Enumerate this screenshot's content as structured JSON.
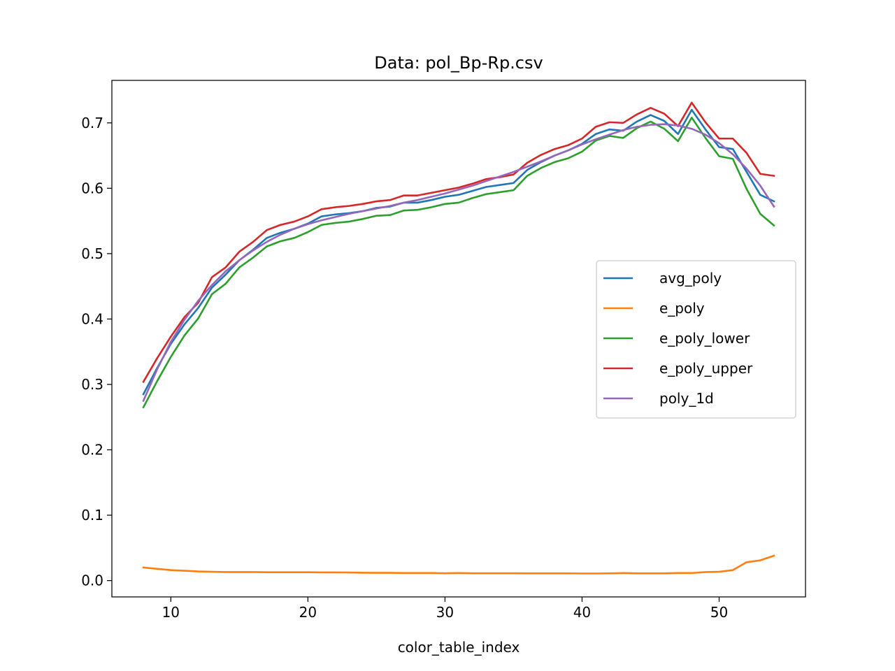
{
  "chart_data": {
    "type": "line",
    "title": "Data: pol_Bp-Rp.csv",
    "xlabel": "color_table_index",
    "ylabel": "",
    "xlim": [
      5.7,
      56.3
    ],
    "ylim": [
      -0.025,
      0.765
    ],
    "xticks": [
      10,
      20,
      30,
      40,
      50
    ],
    "yticks": [
      0.0,
      0.1,
      0.2,
      0.3,
      0.4,
      0.5,
      0.6,
      0.7
    ],
    "ytick_labels": [
      "0.0",
      "0.1",
      "0.2",
      "0.3",
      "0.4",
      "0.5",
      "0.6",
      "0.7"
    ],
    "grid": false,
    "legend_position": "center-right",
    "x": [
      8,
      9,
      10,
      11,
      12,
      13,
      14,
      15,
      16,
      17,
      18,
      19,
      20,
      21,
      22,
      23,
      24,
      25,
      26,
      27,
      28,
      29,
      30,
      31,
      32,
      33,
      34,
      35,
      36,
      37,
      38,
      39,
      40,
      41,
      42,
      43,
      44,
      45,
      46,
      47,
      48,
      49,
      50,
      51,
      52,
      53,
      54
    ],
    "series": [
      {
        "name": "avg_poly",
        "color": "#1f77b4",
        "values": [
          0.285,
          0.325,
          0.362,
          0.392,
          0.417,
          0.448,
          0.468,
          0.49,
          0.506,
          0.524,
          0.532,
          0.538,
          0.546,
          0.557,
          0.56,
          0.562,
          0.565,
          0.57,
          0.572,
          0.578,
          0.578,
          0.582,
          0.587,
          0.59,
          0.596,
          0.602,
          0.605,
          0.608,
          0.628,
          0.64,
          0.65,
          0.658,
          0.668,
          0.683,
          0.69,
          0.688,
          0.702,
          0.712,
          0.703,
          0.683,
          0.72,
          0.69,
          0.663,
          0.66,
          0.625,
          0.59,
          0.58
        ]
      },
      {
        "name": "e_poly",
        "color": "#ff7f0e",
        "values": [
          0.02,
          0.018,
          0.016,
          0.015,
          0.014,
          0.0135,
          0.013,
          0.013,
          0.013,
          0.0128,
          0.0128,
          0.0128,
          0.0128,
          0.0125,
          0.0125,
          0.0123,
          0.012,
          0.0118,
          0.0118,
          0.0115,
          0.0115,
          0.0115,
          0.0112,
          0.0115,
          0.0112,
          0.0112,
          0.0112,
          0.0112,
          0.011,
          0.011,
          0.011,
          0.011,
          0.0108,
          0.0108,
          0.011,
          0.0115,
          0.011,
          0.011,
          0.011,
          0.0115,
          0.0115,
          0.013,
          0.0135,
          0.016,
          0.028,
          0.031,
          0.038
        ]
      },
      {
        "name": "e_poly_lower",
        "color": "#2ca02c",
        "values": [
          0.265,
          0.305,
          0.342,
          0.375,
          0.401,
          0.438,
          0.454,
          0.479,
          0.494,
          0.511,
          0.519,
          0.524,
          0.533,
          0.544,
          0.547,
          0.549,
          0.553,
          0.558,
          0.559,
          0.566,
          0.567,
          0.571,
          0.576,
          0.578,
          0.585,
          0.591,
          0.594,
          0.597,
          0.619,
          0.631,
          0.64,
          0.646,
          0.656,
          0.673,
          0.68,
          0.677,
          0.692,
          0.702,
          0.691,
          0.672,
          0.708,
          0.677,
          0.649,
          0.645,
          0.599,
          0.561,
          0.543
        ]
      },
      {
        "name": "e_poly_upper",
        "color": "#d62728",
        "values": [
          0.304,
          0.34,
          0.373,
          0.403,
          0.425,
          0.464,
          0.479,
          0.503,
          0.518,
          0.536,
          0.544,
          0.549,
          0.557,
          0.568,
          0.571,
          0.573,
          0.576,
          0.58,
          0.582,
          0.589,
          0.589,
          0.593,
          0.597,
          0.601,
          0.607,
          0.614,
          0.617,
          0.621,
          0.639,
          0.651,
          0.66,
          0.666,
          0.676,
          0.694,
          0.701,
          0.7,
          0.713,
          0.723,
          0.714,
          0.695,
          0.731,
          0.701,
          0.676,
          0.676,
          0.654,
          0.622,
          0.619
        ]
      },
      {
        "name": "poly_1d",
        "color": "#9467bd",
        "values": [
          0.275,
          0.323,
          0.365,
          0.399,
          0.428,
          0.452,
          0.473,
          0.49,
          0.505,
          0.518,
          0.529,
          0.538,
          0.545,
          0.551,
          0.556,
          0.561,
          0.565,
          0.569,
          0.573,
          0.578,
          0.582,
          0.587,
          0.592,
          0.598,
          0.604,
          0.611,
          0.618,
          0.625,
          0.633,
          0.641,
          0.65,
          0.658,
          0.667,
          0.675,
          0.682,
          0.689,
          0.694,
          0.697,
          0.698,
          0.696,
          0.691,
          0.682,
          0.669,
          0.652,
          0.63,
          0.604,
          0.572
        ]
      }
    ]
  }
}
